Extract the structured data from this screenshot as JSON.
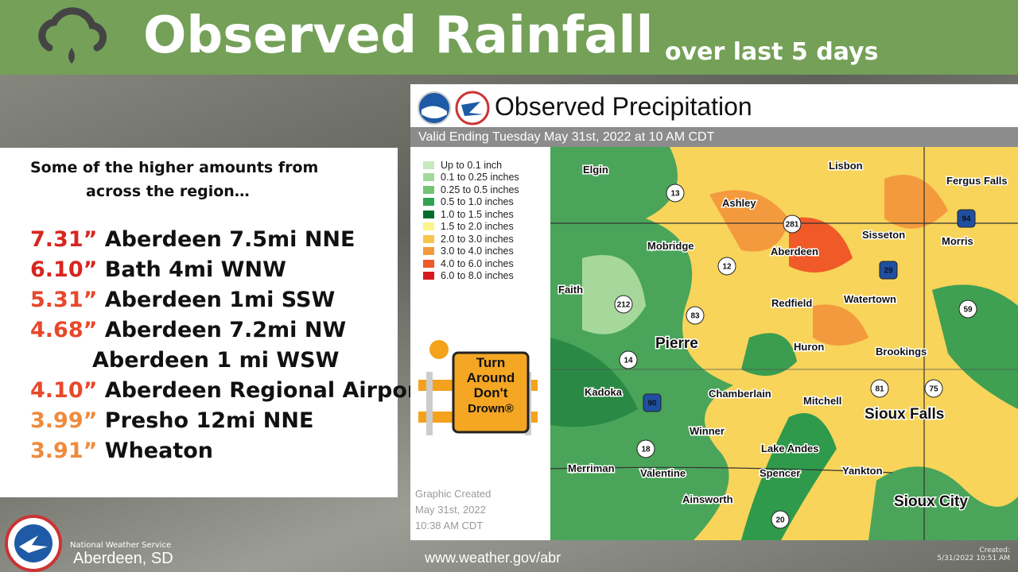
{
  "header": {
    "title": "Observed Rainfall",
    "subtitle": "over last 5 days"
  },
  "highlights": {
    "intro": [
      "Some of the higher amounts from",
      "across the region…"
    ],
    "items": [
      {
        "amount": "7.31”",
        "locations": [
          "Aberdeen 7.5mi NNE"
        ],
        "color": "#d7261e"
      },
      {
        "amount": "6.10”",
        "locations": [
          "Bath 4mi WNW"
        ],
        "color": "#d7261e"
      },
      {
        "amount": "5.31”",
        "locations": [
          "Aberdeen 1mi SSW"
        ],
        "color": "#e8482a"
      },
      {
        "amount": "4.68”",
        "locations": [
          "Aberdeen 7.2mi NW",
          "Aberdeen 1 mi WSW"
        ],
        "color": "#e8482a"
      },
      {
        "amount": "4.10”",
        "locations": [
          "Aberdeen Regional Airport"
        ],
        "color": "#e8482a"
      },
      {
        "amount": "3.99”",
        "locations": [
          "Presho 12mi NNE"
        ],
        "color": "#f08a3c"
      },
      {
        "amount": "3.91”",
        "locations": [
          "Wheaton"
        ],
        "color": "#f08a3c"
      }
    ]
  },
  "map": {
    "title": "Observed Precipitation",
    "valid": "Valid Ending Tuesday May 31st, 2022 at 10 AM CDT",
    "legend": [
      {
        "label": "Up to 0.1 inch",
        "color": "#c7e9c0"
      },
      {
        "label": "0.1 to 0.25 inches",
        "color": "#a1d99b"
      },
      {
        "label": "0.25 to 0.5 inches",
        "color": "#74c476"
      },
      {
        "label": "0.5 to 1.0 inches",
        "color": "#31a354"
      },
      {
        "label": "1.0 to 1.5 inches",
        "color": "#006d2c"
      },
      {
        "label": "1.5 to 2.0 inches",
        "color": "#fbf58a"
      },
      {
        "label": "2.0 to 3.0 inches",
        "color": "#f8c54b"
      },
      {
        "label": "3.0 to 4.0 inches",
        "color": "#f49a3e"
      },
      {
        "label": "4.0 to 6.0 inches",
        "color": "#ef5a28"
      },
      {
        "label": "6.0 to 8.0 inches",
        "color": "#d7191c"
      }
    ],
    "sign": [
      "Turn",
      "Around",
      "Don't",
      "Drown®"
    ],
    "created": [
      "Graphic Created",
      "May 31st, 2022",
      "10:38 AM CDT"
    ],
    "cities": [
      "Elgin",
      "Lisbon",
      "Fergus Falls",
      "Ashley",
      "Mobridge",
      "Sisseton",
      "Morris",
      "Aberdeen",
      "Faith",
      "Redfield",
      "Watertown",
      "Pierre",
      "Huron",
      "Brookings",
      "Kadoka",
      "Chamberlain",
      "Mitchell",
      "Sioux Falls",
      "Winner",
      "Lake Andes",
      "Merriman",
      "Valentine",
      "Spencer",
      "Yankton",
      "Ainsworth",
      "Sioux City"
    ],
    "highways": [
      "13",
      "281",
      "12",
      "29",
      "94",
      "212",
      "83",
      "14",
      "90",
      "81",
      "75",
      "59",
      "18",
      "20"
    ]
  },
  "footer": {
    "office": "National Weather Service",
    "location": "Aberdeen, SD",
    "url": "www.weather.gov/abr",
    "created": [
      "Created:",
      "5/31/2022 10:51 AM"
    ]
  }
}
